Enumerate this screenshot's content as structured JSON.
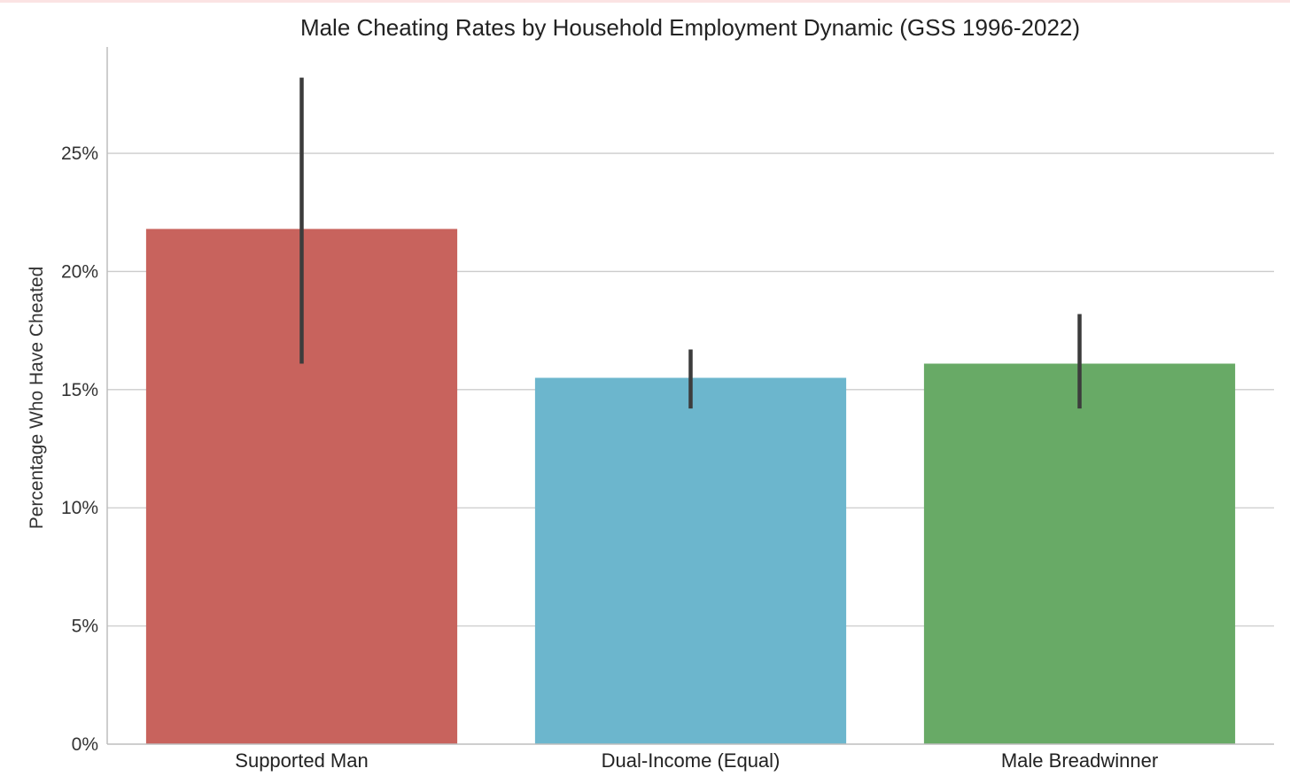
{
  "chart_data": {
    "type": "bar",
    "title": "Male Cheating Rates by Household Employment Dynamic (GSS 1996-2022)",
    "xlabel": "",
    "ylabel": "Percentage Who Have Cheated",
    "categories": [
      "Supported Man",
      "Dual-Income (Equal)",
      "Male Breadwinner"
    ],
    "values": [
      21.8,
      15.5,
      16.1
    ],
    "error_low": [
      16.1,
      14.2,
      14.2
    ],
    "error_high": [
      28.2,
      16.7,
      18.2
    ],
    "colors": [
      "#c8635d",
      "#6cb6cd",
      "#68aa66"
    ],
    "ylim": [
      0,
      29.5
    ],
    "yticks": [
      0,
      5,
      10,
      15,
      20,
      25
    ],
    "ytick_labels": [
      "0%",
      "5%",
      "10%",
      "15%",
      "20%",
      "25%"
    ],
    "grid": true,
    "error_bar_color": "#3c3c3c",
    "gridline_color": "#cccccc",
    "axis_color": "#bdbdbd"
  }
}
